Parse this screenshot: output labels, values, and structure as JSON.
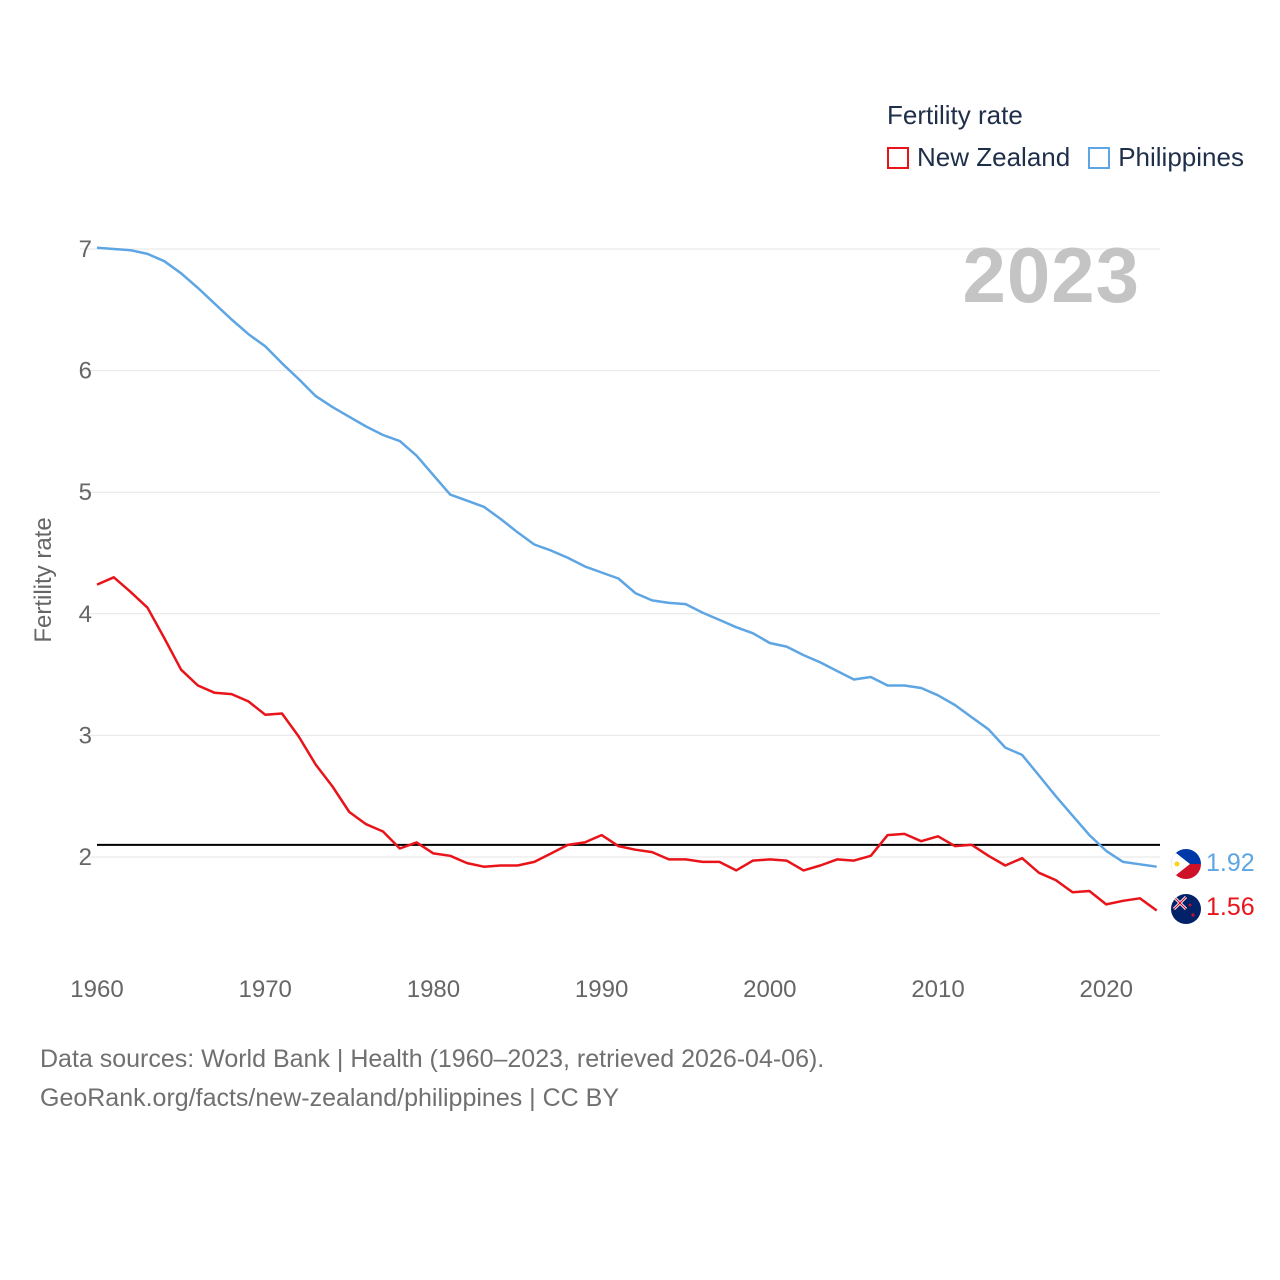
{
  "legend": {
    "title": "Fertility rate",
    "items": [
      {
        "label": "New Zealand",
        "color": "#e8141a"
      },
      {
        "label": "Philippines",
        "color": "#5da5e3"
      }
    ]
  },
  "year_label": "2023",
  "footer": {
    "line1": "Data sources: World Bank | Health (1960–2023, retrieved 2026-04-06).",
    "line2": "GeoRank.org/facts/new-zealand/philippines | CC BY"
  },
  "chart_data": {
    "type": "line",
    "title": "Fertility rate",
    "xlabel": "",
    "ylabel": "Fertility rate",
    "xlim": [
      1960,
      2023
    ],
    "ylim": [
      1.3,
      7.0
    ],
    "xticks": [
      1960,
      1970,
      1980,
      1990,
      2000,
      2010,
      2020
    ],
    "yticks": [
      2,
      3,
      4,
      5,
      6,
      7
    ],
    "grid": true,
    "reference_line": 2.1,
    "x": [
      1960,
      1961,
      1962,
      1963,
      1964,
      1965,
      1966,
      1967,
      1968,
      1969,
      1970,
      1971,
      1972,
      1973,
      1974,
      1975,
      1976,
      1977,
      1978,
      1979,
      1980,
      1981,
      1982,
      1983,
      1984,
      1985,
      1986,
      1987,
      1988,
      1989,
      1990,
      1991,
      1992,
      1993,
      1994,
      1995,
      1996,
      1997,
      1998,
      1999,
      2000,
      2001,
      2002,
      2003,
      2004,
      2005,
      2006,
      2007,
      2008,
      2009,
      2010,
      2011,
      2012,
      2013,
      2014,
      2015,
      2016,
      2017,
      2018,
      2019,
      2020,
      2021,
      2022,
      2023
    ],
    "series": [
      {
        "name": "Philippines",
        "color": "#5da5e3",
        "end_label": "1.92",
        "values": [
          7.01,
          7.0,
          6.99,
          6.96,
          6.9,
          6.8,
          6.68,
          6.55,
          6.42,
          6.3,
          6.2,
          6.06,
          5.93,
          5.79,
          5.7,
          5.62,
          5.54,
          5.47,
          5.42,
          5.3,
          5.14,
          4.98,
          4.93,
          4.88,
          4.78,
          4.67,
          4.57,
          4.52,
          4.46,
          4.39,
          4.34,
          4.29,
          4.17,
          4.11,
          4.09,
          4.08,
          4.01,
          3.95,
          3.89,
          3.84,
          3.76,
          3.73,
          3.66,
          3.6,
          3.53,
          3.46,
          3.48,
          3.41,
          3.41,
          3.39,
          3.33,
          3.25,
          3.15,
          3.05,
          2.9,
          2.84,
          2.67,
          2.5,
          2.34,
          2.18,
          2.05,
          1.96,
          1.94,
          1.92
        ]
      },
      {
        "name": "New Zealand",
        "color": "#e8141a",
        "end_label": "1.56",
        "values": [
          4.24,
          4.3,
          4.18,
          4.05,
          3.8,
          3.54,
          3.41,
          3.35,
          3.34,
          3.28,
          3.17,
          3.18,
          2.99,
          2.76,
          2.58,
          2.37,
          2.27,
          2.21,
          2.07,
          2.12,
          2.03,
          2.01,
          1.95,
          1.92,
          1.93,
          1.93,
          1.96,
          2.03,
          2.1,
          2.12,
          2.18,
          2.09,
          2.06,
          2.04,
          1.98,
          1.98,
          1.96,
          1.96,
          1.89,
          1.97,
          1.98,
          1.97,
          1.89,
          1.93,
          1.98,
          1.97,
          2.01,
          2.18,
          2.19,
          2.13,
          2.17,
          2.09,
          2.1,
          2.01,
          1.93,
          1.99,
          1.87,
          1.81,
          1.71,
          1.72,
          1.61,
          1.64,
          1.66,
          1.56
        ]
      }
    ]
  }
}
